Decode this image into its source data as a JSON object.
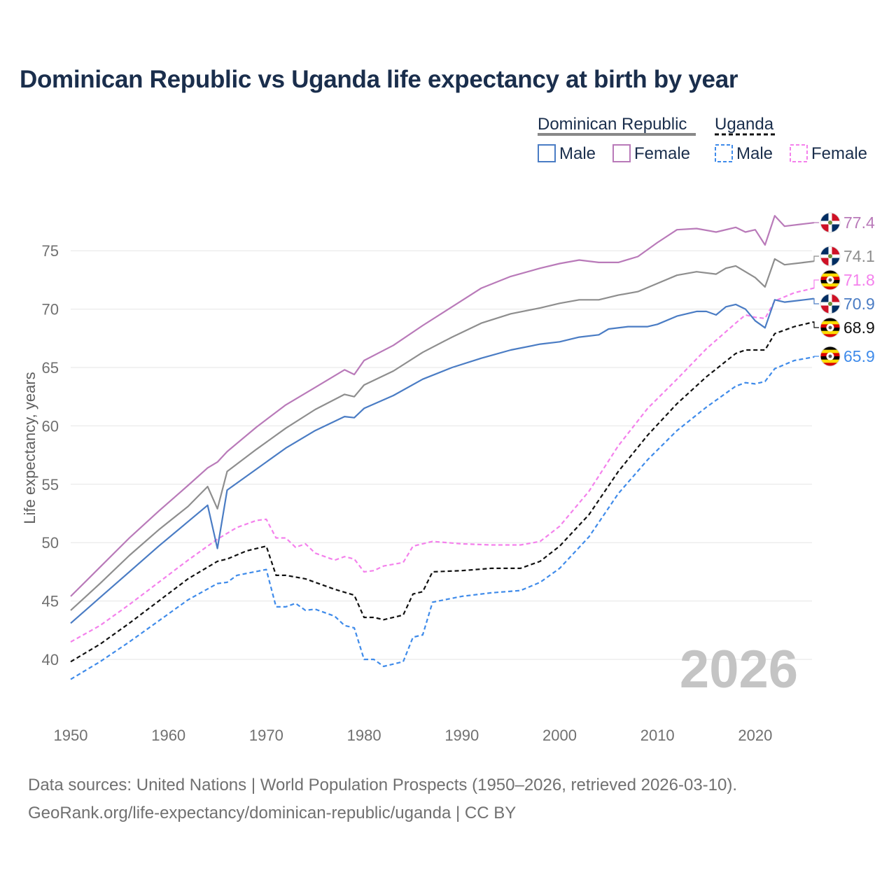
{
  "title": "Dominican Republic vs Uganda life expectancy at birth by year",
  "legend": {
    "groups": [
      {
        "name": "Dominican Republic",
        "color": "#888888",
        "dash": "solid"
      },
      {
        "name": "Uganda",
        "color": "#111111",
        "dash": "dashed"
      }
    ],
    "items": [
      {
        "label": "Male",
        "color": "#4a7cc4",
        "dash": "solid"
      },
      {
        "label": "Female",
        "color": "#b97ab9",
        "dash": "solid"
      },
      {
        "label": "Male",
        "color": "#3f8bea",
        "dash": "dashed"
      },
      {
        "label": "Female",
        "color": "#f481ec",
        "dash": "dashed"
      }
    ]
  },
  "current_year": "2026",
  "footer": {
    "line1": "Data sources: United Nations | World Population Prospects (1950–2026, retrieved 2026-03-10).",
    "line2": "GeoRank.org/life-expectancy/dominican-republic/uganda | CC BY"
  },
  "flags": {
    "dominican_republic": {
      "blue": "#002d62",
      "red": "#ce1126"
    },
    "uganda": {
      "black": "#000000",
      "yellow": "#fcdc04",
      "red": "#d90000"
    }
  },
  "chart_data": {
    "type": "line",
    "title": "Dominican Republic vs Uganda life expectancy at birth by year",
    "xlabel": "",
    "ylabel": "Life expectancy, years",
    "xlim": [
      1950,
      2026
    ],
    "ylim": [
      37,
      80
    ],
    "xticks": [
      1950,
      1960,
      1970,
      1980,
      1990,
      2000,
      2010,
      2020
    ],
    "yticks": [
      40,
      45,
      50,
      55,
      60,
      65,
      70,
      75
    ],
    "grid": true,
    "series": [
      {
        "id": "dr-female",
        "name": "Dominican Republic Female",
        "country": "Dominican Republic",
        "color": "#b97ab9",
        "dashed": false,
        "end_label": "77.4",
        "points": [
          [
            1950,
            45.4
          ],
          [
            1953,
            47.9
          ],
          [
            1956,
            50.4
          ],
          [
            1959,
            52.7
          ],
          [
            1962,
            54.9
          ],
          [
            1964,
            56.4
          ],
          [
            1965,
            56.9
          ],
          [
            1966,
            57.8
          ],
          [
            1969,
            59.9
          ],
          [
            1972,
            61.8
          ],
          [
            1975,
            63.3
          ],
          [
            1978,
            64.8
          ],
          [
            1979,
            64.4
          ],
          [
            1980,
            65.6
          ],
          [
            1983,
            66.9
          ],
          [
            1986,
            68.6
          ],
          [
            1989,
            70.2
          ],
          [
            1992,
            71.8
          ],
          [
            1995,
            72.8
          ],
          [
            1998,
            73.5
          ],
          [
            2000,
            73.9
          ],
          [
            2002,
            74.2
          ],
          [
            2004,
            74.0
          ],
          [
            2006,
            74.0
          ],
          [
            2008,
            74.5
          ],
          [
            2010,
            75.7
          ],
          [
            2012,
            76.8
          ],
          [
            2014,
            76.9
          ],
          [
            2016,
            76.6
          ],
          [
            2018,
            77.0
          ],
          [
            2019,
            76.6
          ],
          [
            2020,
            76.8
          ],
          [
            2021,
            75.5
          ],
          [
            2022,
            78.0
          ],
          [
            2023,
            77.1
          ],
          [
            2025,
            77.3
          ],
          [
            2026,
            77.4
          ]
        ]
      },
      {
        "id": "dr-total",
        "name": "Dominican Republic",
        "country": "Dominican Republic",
        "color": "#8e8e8e",
        "dashed": false,
        "end_label": "74.1",
        "points": [
          [
            1950,
            44.2
          ],
          [
            1953,
            46.5
          ],
          [
            1956,
            48.9
          ],
          [
            1959,
            51.1
          ],
          [
            1962,
            53.1
          ],
          [
            1964,
            54.8
          ],
          [
            1965,
            52.9
          ],
          [
            1966,
            56.1
          ],
          [
            1969,
            58.0
          ],
          [
            1972,
            59.8
          ],
          [
            1975,
            61.4
          ],
          [
            1978,
            62.7
          ],
          [
            1979,
            62.5
          ],
          [
            1980,
            63.5
          ],
          [
            1983,
            64.7
          ],
          [
            1986,
            66.3
          ],
          [
            1989,
            67.6
          ],
          [
            1992,
            68.8
          ],
          [
            1995,
            69.6
          ],
          [
            1998,
            70.1
          ],
          [
            2000,
            70.5
          ],
          [
            2002,
            70.8
          ],
          [
            2004,
            70.8
          ],
          [
            2006,
            71.2
          ],
          [
            2008,
            71.5
          ],
          [
            2010,
            72.2
          ],
          [
            2012,
            72.9
          ],
          [
            2014,
            73.2
          ],
          [
            2016,
            73.0
          ],
          [
            2017,
            73.5
          ],
          [
            2018,
            73.7
          ],
          [
            2019,
            73.2
          ],
          [
            2020,
            72.7
          ],
          [
            2021,
            71.9
          ],
          [
            2022,
            74.3
          ],
          [
            2023,
            73.8
          ],
          [
            2025,
            74.0
          ],
          [
            2026,
            74.1
          ]
        ]
      },
      {
        "id": "ug-female",
        "name": "Uganda Female",
        "country": "Uganda",
        "color": "#f481ec",
        "dashed": true,
        "end_label": "71.8",
        "points": [
          [
            1950,
            41.5
          ],
          [
            1953,
            42.9
          ],
          [
            1956,
            44.7
          ],
          [
            1959,
            46.6
          ],
          [
            1962,
            48.5
          ],
          [
            1965,
            50.3
          ],
          [
            1967,
            51.3
          ],
          [
            1969,
            51.9
          ],
          [
            1970,
            52.0
          ],
          [
            1971,
            50.4
          ],
          [
            1972,
            50.4
          ],
          [
            1973,
            49.6
          ],
          [
            1974,
            49.9
          ],
          [
            1975,
            49.1
          ],
          [
            1977,
            48.5
          ],
          [
            1978,
            48.8
          ],
          [
            1979,
            48.6
          ],
          [
            1980,
            47.5
          ],
          [
            1981,
            47.6
          ],
          [
            1982,
            48.0
          ],
          [
            1984,
            48.3
          ],
          [
            1985,
            49.7
          ],
          [
            1987,
            50.1
          ],
          [
            1990,
            49.9
          ],
          [
            1993,
            49.8
          ],
          [
            1996,
            49.8
          ],
          [
            1998,
            50.1
          ],
          [
            2000,
            51.4
          ],
          [
            2003,
            54.4
          ],
          [
            2006,
            58.3
          ],
          [
            2009,
            61.5
          ],
          [
            2012,
            64.0
          ],
          [
            2015,
            66.6
          ],
          [
            2018,
            68.8
          ],
          [
            2019,
            69.5
          ],
          [
            2020,
            69.3
          ],
          [
            2021,
            69.2
          ],
          [
            2022,
            70.7
          ],
          [
            2024,
            71.4
          ],
          [
            2026,
            71.8
          ]
        ]
      },
      {
        "id": "dr-male",
        "name": "Dominican Republic Male",
        "country": "Dominican Republic",
        "color": "#4a7cc4",
        "dashed": false,
        "end_label": "70.9",
        "points": [
          [
            1950,
            43.1
          ],
          [
            1953,
            45.3
          ],
          [
            1956,
            47.5
          ],
          [
            1959,
            49.7
          ],
          [
            1962,
            51.8
          ],
          [
            1964,
            53.2
          ],
          [
            1965,
            49.5
          ],
          [
            1966,
            54.5
          ],
          [
            1969,
            56.3
          ],
          [
            1972,
            58.1
          ],
          [
            1975,
            59.6
          ],
          [
            1978,
            60.8
          ],
          [
            1979,
            60.7
          ],
          [
            1980,
            61.5
          ],
          [
            1983,
            62.6
          ],
          [
            1986,
            64.0
          ],
          [
            1989,
            65.0
          ],
          [
            1992,
            65.8
          ],
          [
            1995,
            66.5
          ],
          [
            1998,
            67.0
          ],
          [
            2000,
            67.2
          ],
          [
            2002,
            67.6
          ],
          [
            2004,
            67.8
          ],
          [
            2005,
            68.3
          ],
          [
            2007,
            68.5
          ],
          [
            2009,
            68.5
          ],
          [
            2010,
            68.7
          ],
          [
            2012,
            69.4
          ],
          [
            2014,
            69.8
          ],
          [
            2015,
            69.8
          ],
          [
            2016,
            69.5
          ],
          [
            2017,
            70.2
          ],
          [
            2018,
            70.4
          ],
          [
            2019,
            70.0
          ],
          [
            2020,
            69.0
          ],
          [
            2021,
            68.4
          ],
          [
            2022,
            70.8
          ],
          [
            2023,
            70.6
          ],
          [
            2025,
            70.8
          ],
          [
            2026,
            70.9
          ]
        ]
      },
      {
        "id": "ug-total",
        "name": "Uganda",
        "country": "Uganda",
        "color": "#111111",
        "dashed": true,
        "end_label": "68.9",
        "points": [
          [
            1950,
            39.8
          ],
          [
            1953,
            41.3
          ],
          [
            1956,
            43.1
          ],
          [
            1959,
            45.0
          ],
          [
            1962,
            46.9
          ],
          [
            1965,
            48.4
          ],
          [
            1966,
            48.6
          ],
          [
            1968,
            49.3
          ],
          [
            1970,
            49.7
          ],
          [
            1971,
            47.2
          ],
          [
            1972,
            47.2
          ],
          [
            1974,
            46.9
          ],
          [
            1975,
            46.6
          ],
          [
            1977,
            46.0
          ],
          [
            1979,
            45.5
          ],
          [
            1980,
            43.6
          ],
          [
            1981,
            43.6
          ],
          [
            1982,
            43.4
          ],
          [
            1984,
            43.8
          ],
          [
            1985,
            45.6
          ],
          [
            1986,
            45.8
          ],
          [
            1987,
            47.5
          ],
          [
            1990,
            47.6
          ],
          [
            1993,
            47.8
          ],
          [
            1996,
            47.8
          ],
          [
            1998,
            48.4
          ],
          [
            2000,
            49.7
          ],
          [
            2003,
            52.4
          ],
          [
            2006,
            56.1
          ],
          [
            2009,
            59.2
          ],
          [
            2012,
            61.9
          ],
          [
            2015,
            64.2
          ],
          [
            2018,
            66.2
          ],
          [
            2019,
            66.5
          ],
          [
            2021,
            66.5
          ],
          [
            2022,
            67.9
          ],
          [
            2024,
            68.5
          ],
          [
            2026,
            68.9
          ]
        ]
      },
      {
        "id": "ug-male",
        "name": "Uganda Male",
        "country": "Uganda",
        "color": "#3f8bea",
        "dashed": true,
        "end_label": "65.9",
        "points": [
          [
            1950,
            38.3
          ],
          [
            1953,
            39.8
          ],
          [
            1956,
            41.5
          ],
          [
            1959,
            43.3
          ],
          [
            1962,
            45.1
          ],
          [
            1965,
            46.5
          ],
          [
            1966,
            46.6
          ],
          [
            1967,
            47.2
          ],
          [
            1970,
            47.7
          ],
          [
            1971,
            44.5
          ],
          [
            1972,
            44.5
          ],
          [
            1973,
            44.8
          ],
          [
            1974,
            44.2
          ],
          [
            1975,
            44.3
          ],
          [
            1977,
            43.7
          ],
          [
            1978,
            42.9
          ],
          [
            1979,
            42.7
          ],
          [
            1980,
            40.0
          ],
          [
            1981,
            40.0
          ],
          [
            1982,
            39.4
          ],
          [
            1984,
            39.8
          ],
          [
            1985,
            41.9
          ],
          [
            1986,
            42.1
          ],
          [
            1987,
            44.9
          ],
          [
            1990,
            45.4
          ],
          [
            1993,
            45.7
          ],
          [
            1996,
            45.9
          ],
          [
            1998,
            46.6
          ],
          [
            2000,
            47.8
          ],
          [
            2003,
            50.5
          ],
          [
            2006,
            54.2
          ],
          [
            2009,
            57.1
          ],
          [
            2012,
            59.6
          ],
          [
            2015,
            61.6
          ],
          [
            2018,
            63.4
          ],
          [
            2019,
            63.7
          ],
          [
            2020,
            63.6
          ],
          [
            2021,
            63.8
          ],
          [
            2022,
            64.9
          ],
          [
            2024,
            65.6
          ],
          [
            2026,
            65.9
          ]
        ]
      }
    ]
  }
}
